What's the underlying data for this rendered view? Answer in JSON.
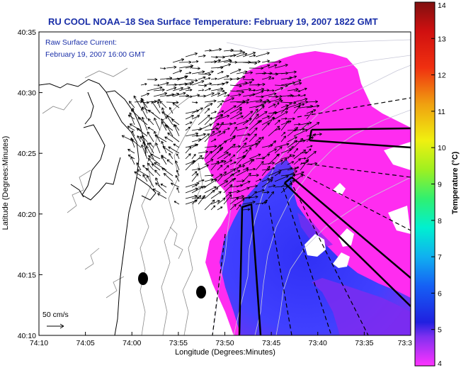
{
  "chart_data": {
    "type": "heatmap",
    "title": "RU COOL  NOAA–18  Sea Surface Temperature:  February 19, 2007 1822 GMT",
    "inset_label_1": "Raw Surface Current:",
    "inset_label_2": "February 19, 2007 16:00 GMT",
    "scale_label": "50 cm/s",
    "xlabel": "Longitude (Degrees:Minutes)",
    "ylabel": "Latitude (Degrees:Minutes)",
    "x_ticks": [
      "74:10",
      "74:05",
      "74:00",
      "73:55",
      "73:50",
      "73:45",
      "73:40",
      "73:35",
      "73:3"
    ],
    "y_ticks": [
      "40:10",
      "40:15",
      "40:20",
      "40:25",
      "40:30",
      "40:35"
    ],
    "xlim": [
      "74:10",
      "73:30"
    ],
    "ylim": [
      "40:10",
      "40:35"
    ],
    "colorbar": {
      "label": "Temperature (°C)",
      "min": 4,
      "max": 14,
      "ticks": [
        "4",
        "5",
        "6",
        "7",
        "8",
        "9",
        "10",
        "11",
        "12",
        "13",
        "14"
      ]
    },
    "grid": false,
    "colors": {
      "warm": "#ff2cf0",
      "cool": "#3a3cf5",
      "mid": "#7d2cf0",
      "title": "#1a2fa8"
    }
  }
}
